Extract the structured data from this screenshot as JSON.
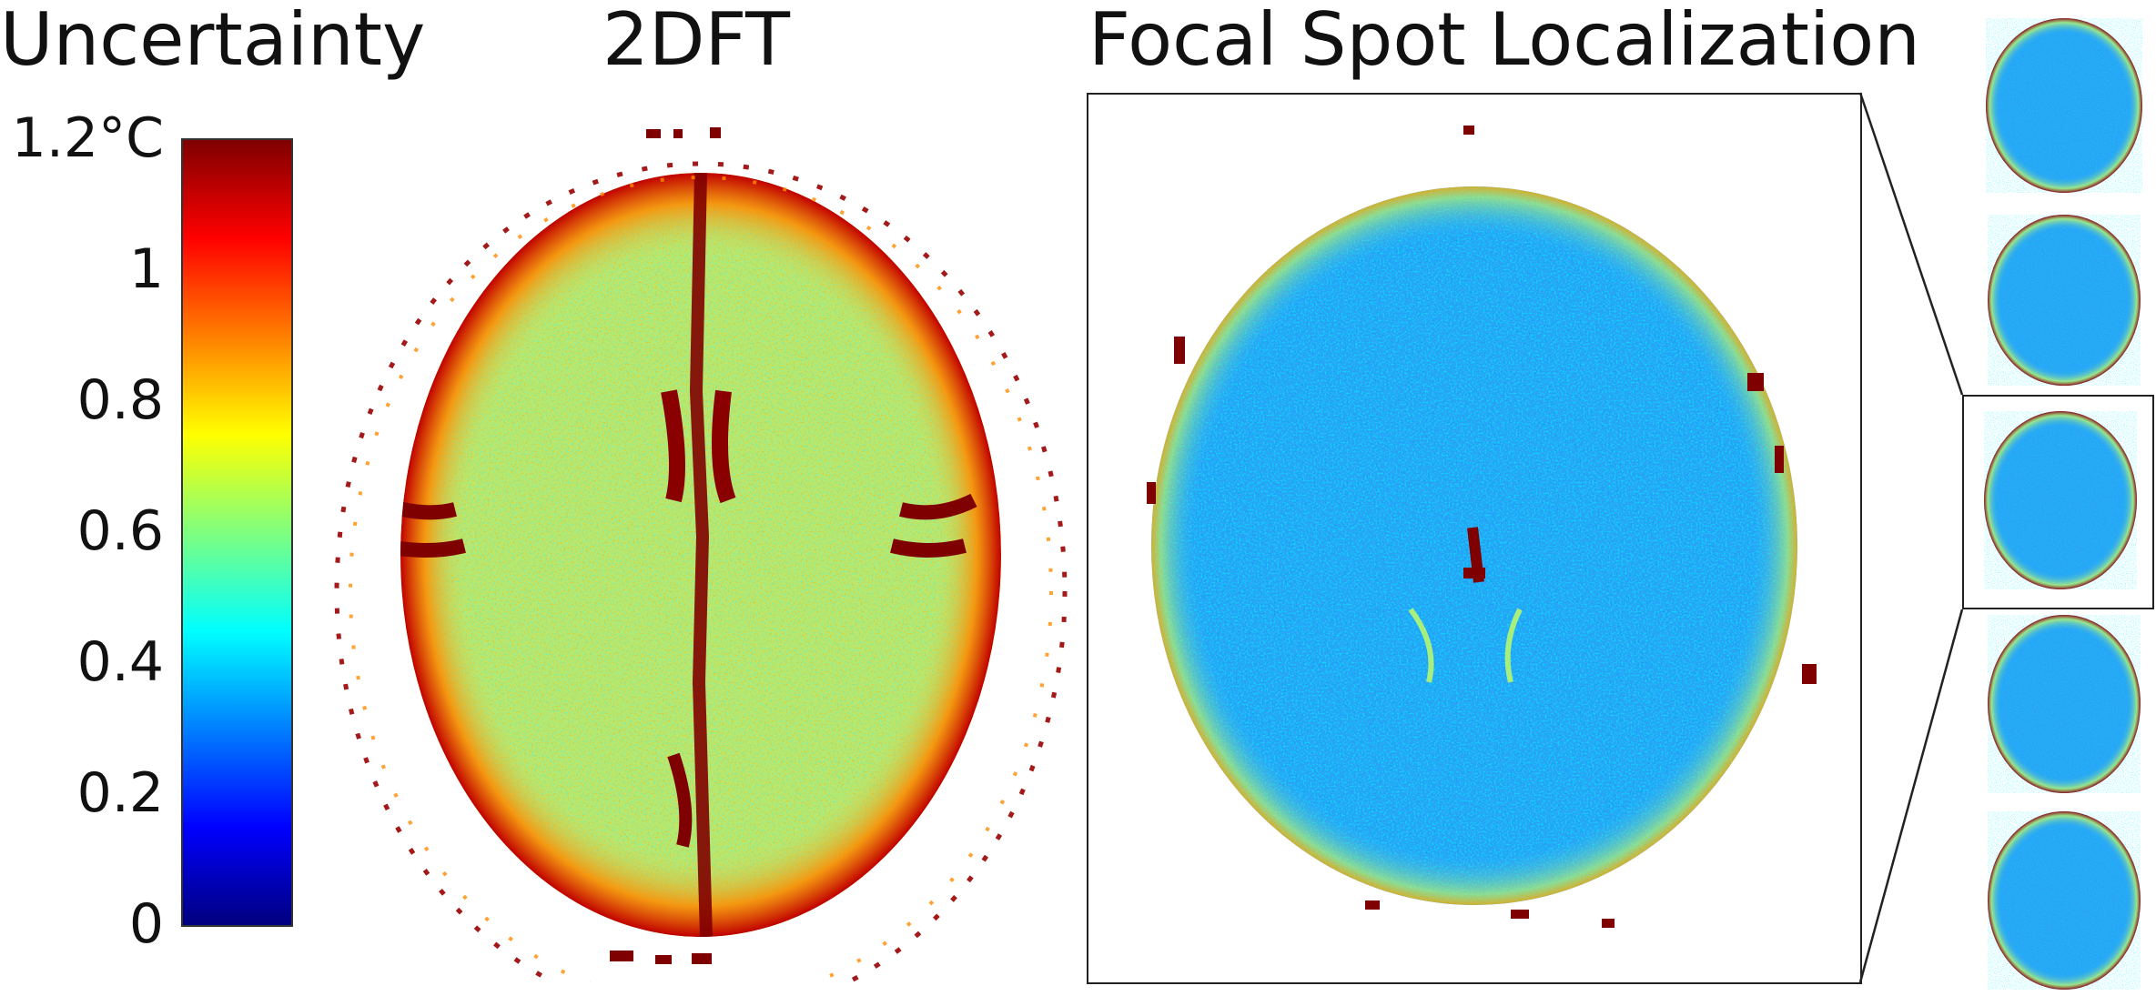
{
  "titles": {
    "uncertainty": "Uncertainty",
    "method_2dft": "2DFT",
    "method_focal": "Focal Spot Localization"
  },
  "colorbar": {
    "ticks": [
      "1.2°C",
      "1",
      "0.8",
      "0.6",
      "0.4",
      "0.2",
      "0"
    ],
    "colormap": "jet",
    "range": [
      0,
      1.2
    ]
  },
  "panels": {
    "map_2dft": {
      "dominant_level": "green-yellow (~0.6-0.8 °C)"
    },
    "map_focal": {
      "dominant_level": "blue-cyan (~0.3-0.4 °C)"
    }
  },
  "thumbnails": {
    "count": 5,
    "highlighted_index": 2
  },
  "colors": {
    "jet_stops": [
      "#00007f",
      "#0000ff",
      "#007fff",
      "#00ffff",
      "#7fff7f",
      "#ffff00",
      "#ff7f00",
      "#ff0000",
      "#7f0000"
    ]
  }
}
